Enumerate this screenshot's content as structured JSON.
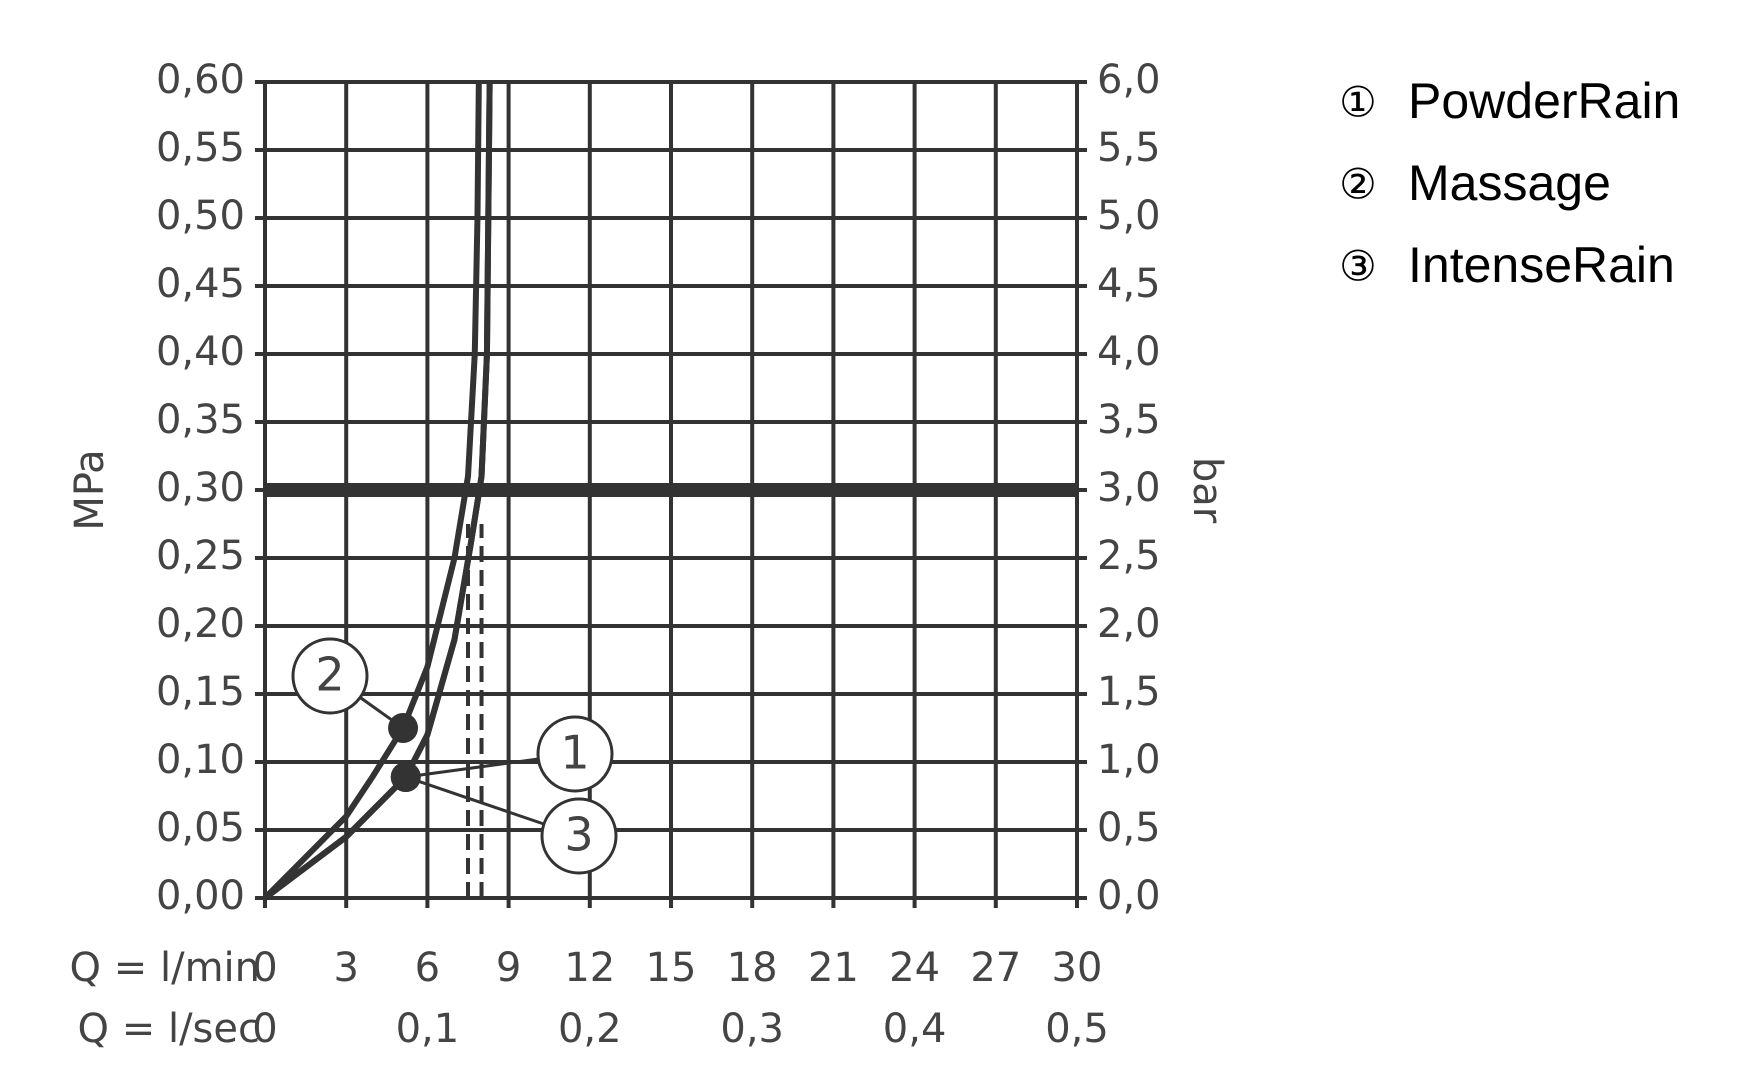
{
  "chart_data": {
    "type": "line",
    "xlabel": "Q = l/min",
    "x2label": "Q = l/sec",
    "ylabel": "MPa",
    "y2label": "bar",
    "xlim": [
      0,
      30
    ],
    "xticks": [
      0,
      3,
      6,
      9,
      12,
      15,
      18,
      21,
      24,
      27,
      30
    ],
    "x2lim": [
      0,
      0.5
    ],
    "x2ticks": [
      0,
      {
        "value": 0.1,
        "label": "0,1"
      },
      {
        "value": 0.2,
        "label": "0,2"
      },
      {
        "value": 0.3,
        "label": "0,3"
      },
      {
        "value": 0.4,
        "label": "0,4"
      },
      {
        "value": 0.5,
        "label": "0,5"
      }
    ],
    "ylim": [
      0,
      0.6
    ],
    "yticks": [
      {
        "value": 0,
        "label": "0,00"
      },
      {
        "value": 0.05,
        "label": "0,05"
      },
      {
        "value": 0.1,
        "label": "0,10"
      },
      {
        "value": 0.15,
        "label": "0,15"
      },
      {
        "value": 0.2,
        "label": "0,20"
      },
      {
        "value": 0.25,
        "label": "0,25"
      },
      {
        "value": 0.3,
        "label": "0,30"
      },
      {
        "value": 0.35,
        "label": "0,35"
      },
      {
        "value": 0.4,
        "label": "0,40"
      },
      {
        "value": 0.45,
        "label": "0,45"
      },
      {
        "value": 0.5,
        "label": "0,50"
      },
      {
        "value": 0.55,
        "label": "0,55"
      },
      {
        "value": 0.6,
        "label": "0,60"
      }
    ],
    "y2lim": [
      0,
      6
    ],
    "y2ticks": [
      {
        "value": 0,
        "label": "0,0"
      },
      {
        "value": 0.5,
        "label": "0,5"
      },
      {
        "value": 1,
        "label": "1,0"
      },
      {
        "value": 1.5,
        "label": "1,5"
      },
      {
        "value": 2,
        "label": "2,0"
      },
      {
        "value": 2.5,
        "label": "2,5"
      },
      {
        "value": 3,
        "label": "3,0"
      },
      {
        "value": 3.5,
        "label": "3,5"
      },
      {
        "value": 4,
        "label": "4,0"
      },
      {
        "value": 4.5,
        "label": "4,5"
      },
      {
        "value": 5,
        "label": "5,0"
      },
      {
        "value": 5.5,
        "label": "5,5"
      },
      {
        "value": 6,
        "label": "6,0"
      }
    ],
    "grid": true,
    "color": "#333333",
    "reference_line": 0.3,
    "dashed_lines": [
      {
        "x": 7.5,
        "y": [
          0,
          0.275
        ]
      },
      {
        "x": 8.0,
        "y": [
          0,
          0.275
        ]
      }
    ],
    "series": [
      {
        "name": "PowderRain",
        "symbol": "①",
        "label": "1",
        "x": [
          0,
          2,
          3,
          4,
          5.2,
          6,
          7,
          7.6,
          8,
          8.2,
          8.3
        ],
        "values": [
          0,
          0.03,
          0.045,
          0.065,
          0.089,
          0.12,
          0.19,
          0.26,
          0.31,
          0.4,
          0.6
        ],
        "marker": {
          "x": 5.2,
          "y": 0.089
        }
      },
      {
        "name": "Massage",
        "symbol": "②",
        "label": "2",
        "x": [
          0,
          2,
          3,
          4,
          5.1,
          6,
          7,
          7.5,
          7.75,
          7.85,
          7.9
        ],
        "values": [
          0,
          0.04,
          0.06,
          0.09,
          0.125,
          0.17,
          0.25,
          0.31,
          0.4,
          0.5,
          0.6
        ],
        "marker": {
          "x": 5.1,
          "y": 0.125
        }
      },
      {
        "name": "IntenseRain",
        "symbol": "③",
        "label": "3",
        "x": [
          0,
          2,
          3,
          4,
          5.2,
          6,
          7,
          7.6,
          8,
          8.2,
          8.3
        ],
        "values": [
          0,
          0.03,
          0.045,
          0.065,
          0.089,
          0.12,
          0.19,
          0.26,
          0.31,
          0.4,
          0.6
        ],
        "marker": {
          "x": 5.2,
          "y": 0.089
        }
      }
    ]
  }
}
